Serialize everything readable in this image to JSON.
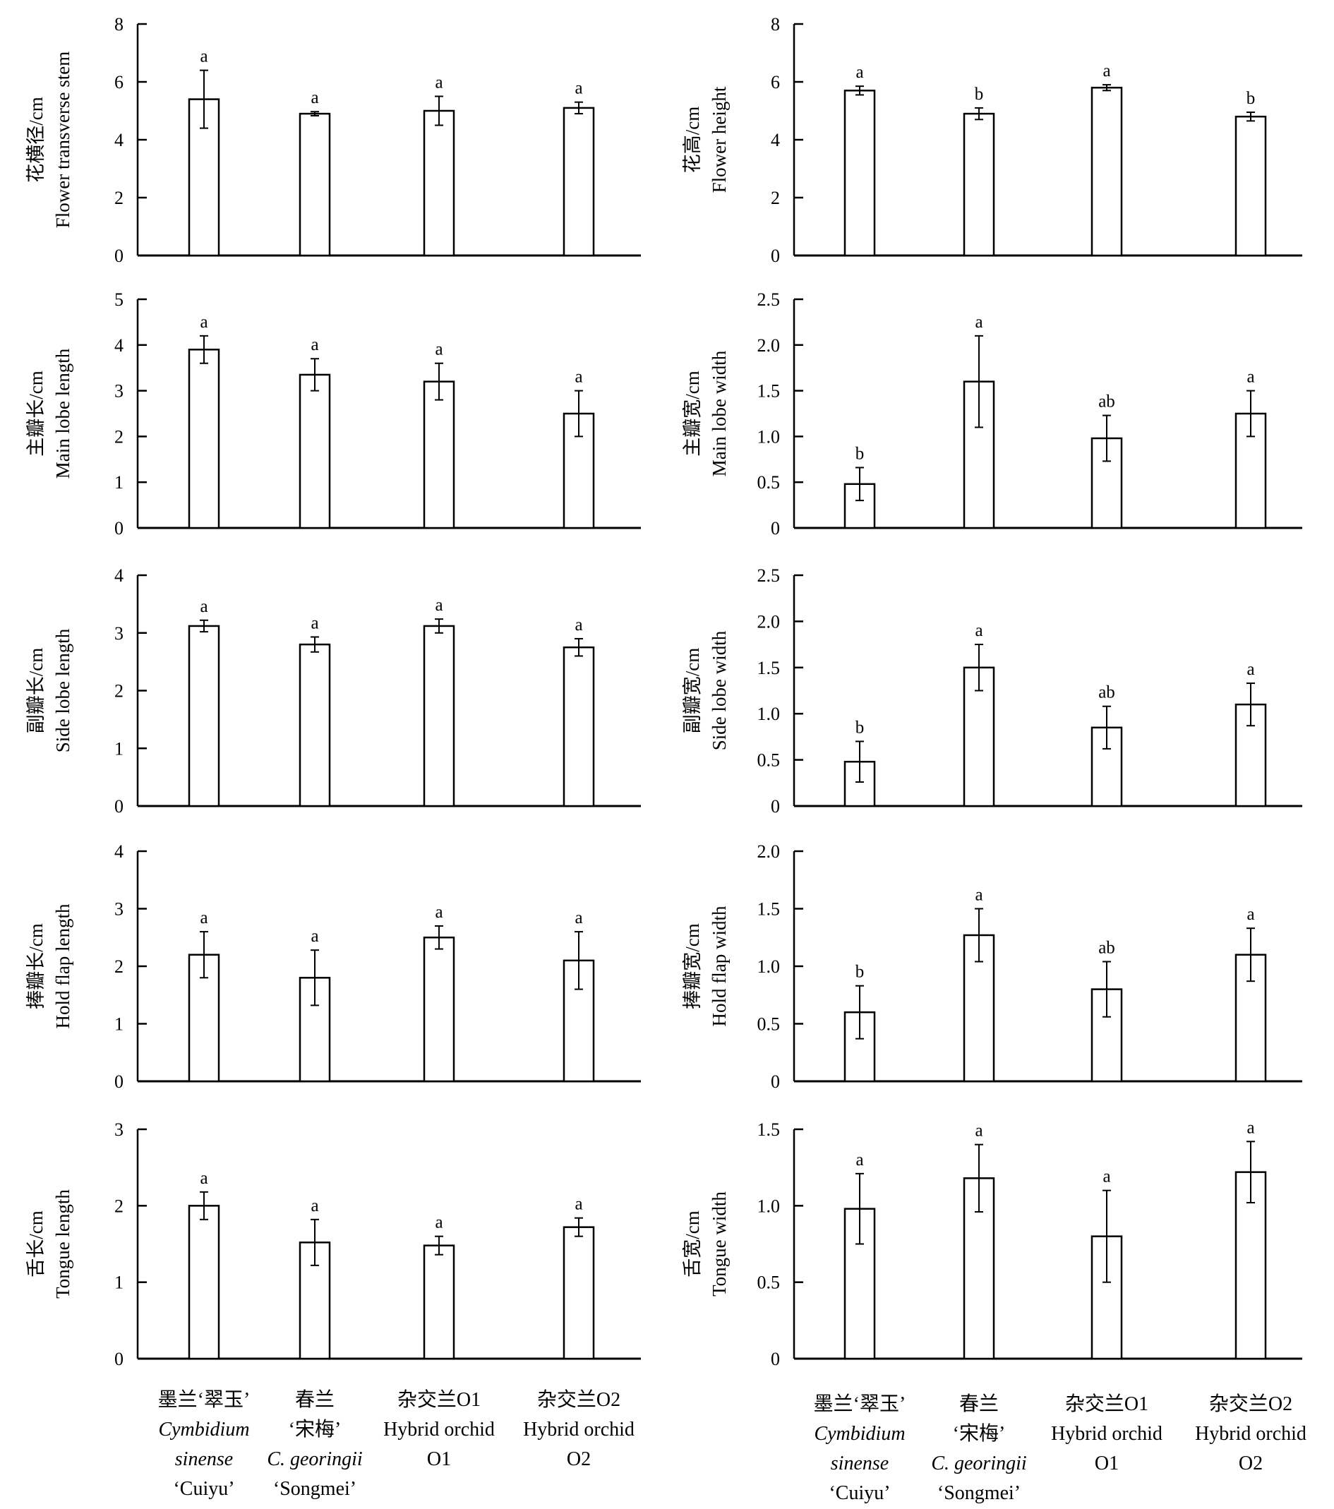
{
  "categories": [
    [
      "墨兰‘翠玉’",
      "Cymbidium",
      "sinense",
      "‘Cuiyu’"
    ],
    [
      "春兰",
      "‘宋梅’",
      "C. georingii",
      "‘Songmei’"
    ],
    [
      "杂交兰O1",
      "Hybrid orchid",
      "O1"
    ],
    [
      "杂交兰O2",
      "Hybrid orchid",
      "O2"
    ]
  ],
  "category_italic_lines": [
    [
      1,
      2
    ],
    [
      2
    ],
    [],
    []
  ],
  "chart_data": [
    {
      "type": "bar",
      "ylabel_cn": "花横径/cm",
      "ylabel_en": "Flower transverse stem",
      "ylim": [
        0,
        8
      ],
      "yticks": [
        "0",
        "2",
        "4",
        "6",
        "8"
      ],
      "values": [
        5.4,
        4.9,
        5.0,
        5.1
      ],
      "errors": [
        1.0,
        0.07,
        0.5,
        0.2
      ],
      "letters": [
        "a",
        "a",
        "a",
        "a"
      ]
    },
    {
      "type": "bar",
      "ylabel_cn": "花高/cm",
      "ylabel_en": "Flower height",
      "ylim": [
        0,
        8
      ],
      "yticks": [
        "0",
        "2",
        "4",
        "6",
        "8"
      ],
      "values": [
        5.7,
        4.9,
        5.8,
        4.8
      ],
      "errors": [
        0.15,
        0.2,
        0.1,
        0.15
      ],
      "letters": [
        "a",
        "b",
        "a",
        "b"
      ]
    },
    {
      "type": "bar",
      "ylabel_cn": "主瓣长/cm",
      "ylabel_en": "Main lobe length",
      "ylim": [
        0,
        5
      ],
      "yticks": [
        "0",
        "1",
        "2",
        "3",
        "4",
        "5"
      ],
      "values": [
        3.9,
        3.35,
        3.2,
        2.5
      ],
      "errors": [
        0.3,
        0.35,
        0.4,
        0.5
      ],
      "letters": [
        "a",
        "a",
        "a",
        "a"
      ]
    },
    {
      "type": "bar",
      "ylabel_cn": "主瓣宽/cm",
      "ylabel_en": "Main lobe width",
      "ylim": [
        0,
        2.5
      ],
      "yticks": [
        "0",
        "0.5",
        "1.0",
        "1.5",
        "2.0",
        "2.5"
      ],
      "values": [
        0.48,
        1.6,
        0.98,
        1.25
      ],
      "errors": [
        0.18,
        0.5,
        0.25,
        0.25
      ],
      "letters": [
        "b",
        "a",
        "ab",
        "a"
      ]
    },
    {
      "type": "bar",
      "ylabel_cn": "副瓣长/cm",
      "ylabel_en": "Side lobe length",
      "ylim": [
        0,
        4
      ],
      "yticks": [
        "0",
        "1",
        "2",
        "3",
        "4"
      ],
      "values": [
        3.12,
        2.8,
        3.12,
        2.75
      ],
      "errors": [
        0.1,
        0.13,
        0.12,
        0.15
      ],
      "letters": [
        "a",
        "a",
        "a",
        "a"
      ]
    },
    {
      "type": "bar",
      "ylabel_cn": "副瓣宽/cm",
      "ylabel_en": "Side lobe width",
      "ylim": [
        0,
        2.5
      ],
      "yticks": [
        "0",
        "0.5",
        "1.0",
        "1.5",
        "2.0",
        "2.5"
      ],
      "values": [
        0.48,
        1.5,
        0.85,
        1.1
      ],
      "errors": [
        0.22,
        0.25,
        0.23,
        0.23
      ],
      "letters": [
        "b",
        "a",
        "ab",
        "a"
      ]
    },
    {
      "type": "bar",
      "ylabel_cn": "捧瓣长/cm",
      "ylabel_en": "Hold flap length",
      "ylim": [
        0,
        4
      ],
      "yticks": [
        "0",
        "1",
        "2",
        "3",
        "4"
      ],
      "values": [
        2.2,
        1.8,
        2.5,
        2.1
      ],
      "errors": [
        0.4,
        0.48,
        0.2,
        0.5
      ],
      "letters": [
        "a",
        "a",
        "a",
        "a"
      ]
    },
    {
      "type": "bar",
      "ylabel_cn": "捧瓣宽/cm",
      "ylabel_en": "Hold flap width",
      "ylim": [
        0,
        2.0
      ],
      "yticks": [
        "0",
        "0.5",
        "1.0",
        "1.5",
        "2.0"
      ],
      "values": [
        0.6,
        1.27,
        0.8,
        1.1
      ],
      "errors": [
        0.23,
        0.23,
        0.24,
        0.23
      ],
      "letters": [
        "b",
        "a",
        "ab",
        "a"
      ]
    },
    {
      "type": "bar",
      "ylabel_cn": "舌长/cm",
      "ylabel_en": "Tongue length",
      "ylim": [
        0,
        3
      ],
      "yticks": [
        "0",
        "1",
        "2",
        "3"
      ],
      "values": [
        2.0,
        1.52,
        1.48,
        1.72
      ],
      "errors": [
        0.18,
        0.3,
        0.12,
        0.12
      ],
      "letters": [
        "a",
        "a",
        "a",
        "a"
      ]
    },
    {
      "type": "bar",
      "ylabel_cn": "舌宽/cm",
      "ylabel_en": "Tongue width",
      "ylim": [
        0,
        1.5
      ],
      "yticks": [
        "0",
        "0.5",
        "1.0",
        "1.5"
      ],
      "values": [
        0.98,
        1.18,
        0.8,
        1.22
      ],
      "errors": [
        0.23,
        0.22,
        0.3,
        0.2
      ],
      "letters": [
        "a",
        "a",
        "a",
        "a"
      ]
    }
  ]
}
